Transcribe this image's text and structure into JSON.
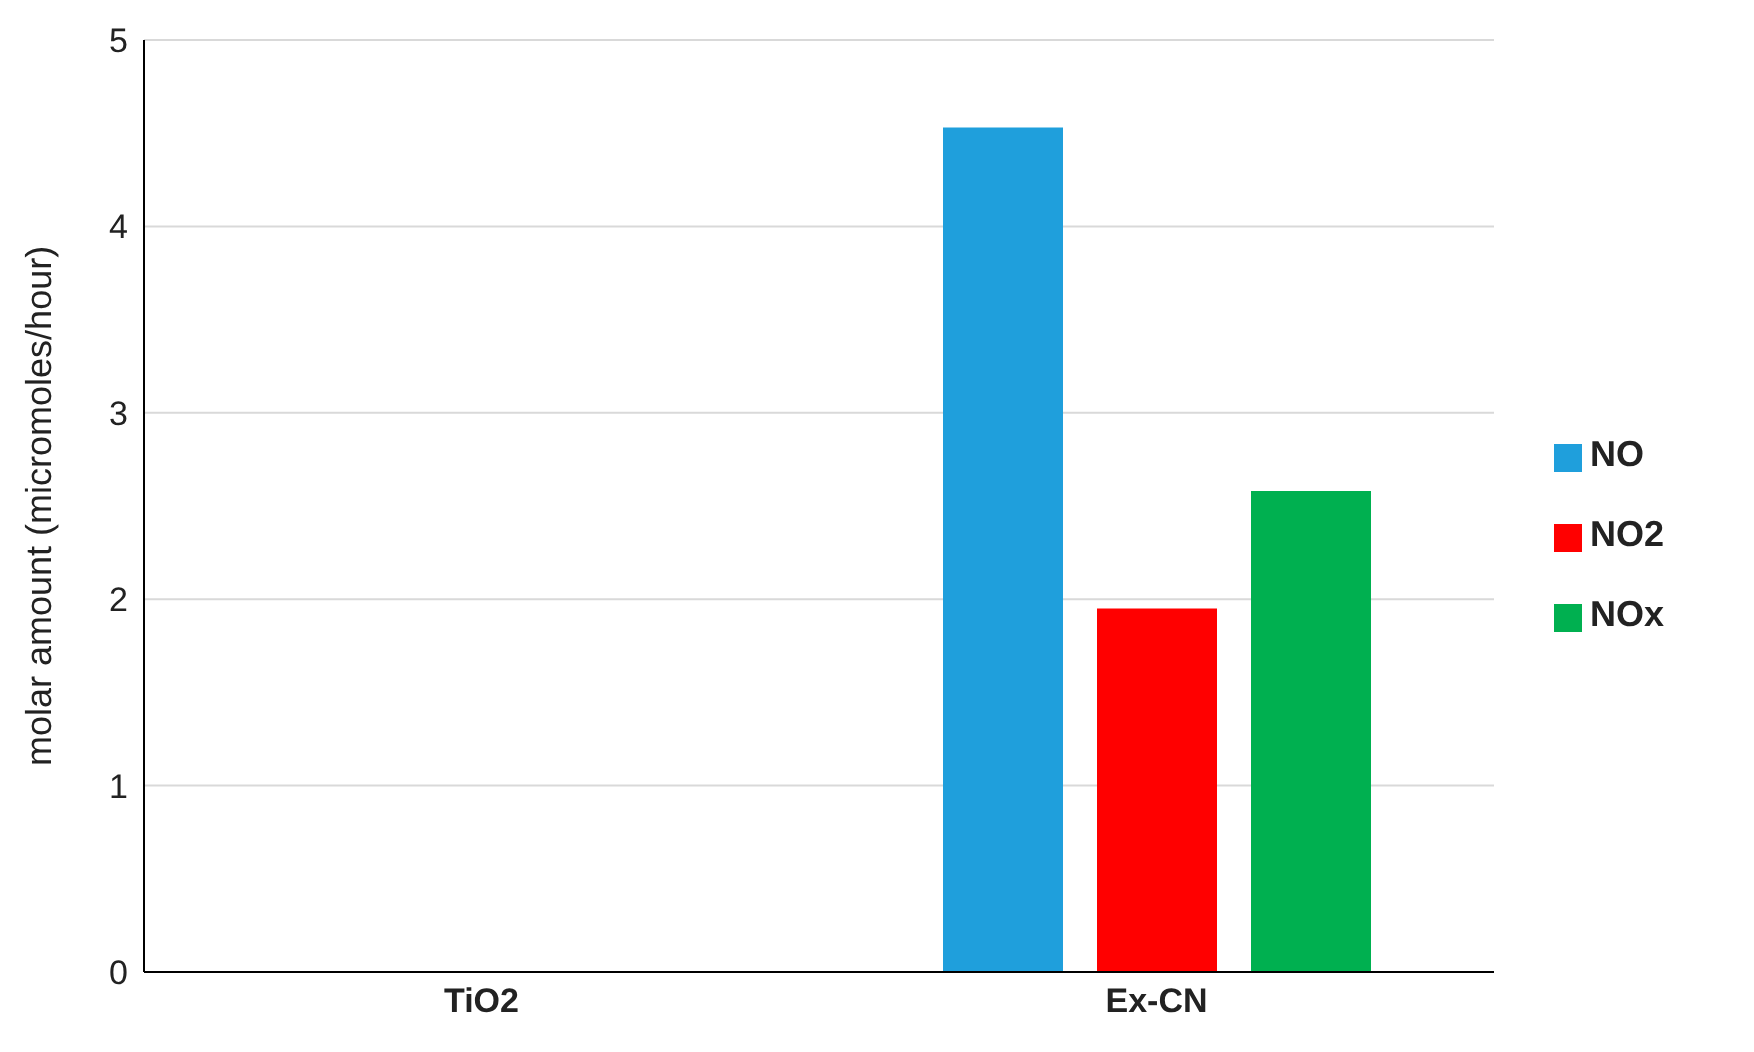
{
  "chart_data": {
    "type": "bar",
    "ylabel": "molar amount (micromoles/hour)",
    "categories": [
      "TiO2",
      "Ex-CN"
    ],
    "series": [
      {
        "name": "NO",
        "color": "#1f9fdc",
        "values": [
          0,
          4.53
        ]
      },
      {
        "name": "NO2",
        "color": "#ff0000",
        "values": [
          0,
          1.95
        ]
      },
      {
        "name": "NOx",
        "color": "#00b050",
        "values": [
          0,
          2.58
        ]
      }
    ],
    "ylim": [
      0,
      5
    ],
    "yticks": [
      0,
      1,
      2,
      3,
      4,
      5
    ],
    "grid": "y",
    "legend": "right"
  }
}
